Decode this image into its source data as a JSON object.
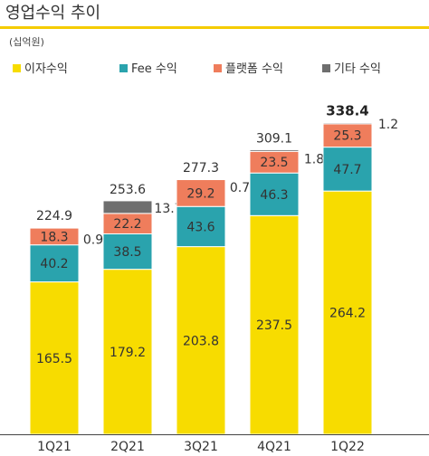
{
  "title": "영업수익 추이",
  "unit": "(십억원)",
  "colors": {
    "accent_rule": "#F5CC00",
    "axis": "#444444",
    "text": "#333333",
    "total_highlight": "#222222"
  },
  "chart_data": {
    "type": "bar",
    "stacked": true,
    "categories": [
      "1Q21",
      "2Q21",
      "3Q21",
      "4Q21",
      "1Q22"
    ],
    "series": [
      {
        "name": "이자수익",
        "color": "#F7DC00",
        "values": [
          165.5,
          179.2,
          203.8,
          237.5,
          264.2
        ]
      },
      {
        "name": "Fee 수익",
        "color": "#2AA3AD",
        "values": [
          40.2,
          38.5,
          43.6,
          46.3,
          47.7
        ]
      },
      {
        "name": "플랫폼 수익",
        "color": "#EF7D5C",
        "values": [
          18.3,
          22.2,
          29.2,
          23.5,
          25.3
        ]
      },
      {
        "name": "기타 수익",
        "color": "#6E6E6E",
        "values": [
          0.9,
          13.7,
          0.7,
          1.8,
          1.2
        ]
      }
    ],
    "totals": [
      224.9,
      253.6,
      277.3,
      309.1,
      338.4
    ],
    "other_labels": [
      "0.9",
      "13.7",
      "0.7",
      "1.8",
      "1.2"
    ],
    "highlight_total_index": 4,
    "ylim": [
      0,
      340
    ],
    "xlabel": "",
    "ylabel": "",
    "grid": false,
    "legend_position": "top"
  }
}
